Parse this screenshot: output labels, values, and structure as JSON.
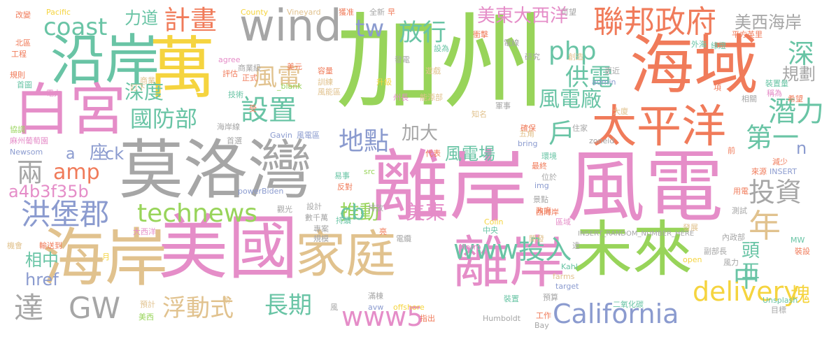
{
  "palette": {
    "green": "#98d45a",
    "pink": "#e58dc8",
    "gray": "#a6a6a6",
    "tan": "#e1c28e",
    "orange": "#f07b5a",
    "teal": "#69c4a5",
    "blue": "#8b9bcf",
    "yellow": "#f5d43f"
  },
  "words": [
    {
      "text": "加州",
      "color": "green"
    },
    {
      "text": "離岸",
      "color": "pink"
    },
    {
      "text": "風電",
      "color": "pink"
    },
    {
      "text": "美國",
      "color": "pink"
    },
    {
      "text": "莫洛灣",
      "color": "gray"
    },
    {
      "text": "海域",
      "color": "orange"
    },
    {
      "text": "萬",
      "color": "yellow"
    },
    {
      "text": "沿岸",
      "color": "teal"
    },
    {
      "text": "白宮",
      "color": "pink"
    },
    {
      "text": "海岸",
      "color": "tan"
    },
    {
      "text": "家庭",
      "color": "tan"
    },
    {
      "text": "未來",
      "color": "green"
    },
    {
      "text": "離岸",
      "color": "pink"
    },
    {
      "text": "太平洋",
      "color": "orange"
    },
    {
      "text": "wind",
      "color": "gray"
    },
    {
      "text": "聯邦政府",
      "color": "orange"
    },
    {
      "text": "計畫",
      "color": "orange"
    },
    {
      "text": "coast",
      "color": "teal"
    },
    {
      "text": "technews",
      "color": "green"
    },
    {
      "text": "洪堡郡",
      "color": "blue"
    },
    {
      "text": "amp",
      "color": "orange"
    },
    {
      "text": "設置",
      "color": "teal"
    },
    {
      "text": "國防部",
      "color": "teal"
    },
    {
      "text": "地點",
      "color": "blue"
    },
    {
      "text": "www投入",
      "color": "teal"
    },
    {
      "text": "www5",
      "color": "pink"
    },
    {
      "text": "delivery",
      "color": "yellow"
    },
    {
      "text": "California",
      "color": "blue"
    },
    {
      "text": "GW",
      "color": "gray"
    },
    {
      "text": "達",
      "color": "gray"
    },
    {
      "text": "浮動式",
      "color": "tan"
    },
    {
      "text": "長期",
      "color": "teal"
    },
    {
      "text": "php",
      "color": "teal"
    },
    {
      "text": "tw",
      "color": "blue"
    },
    {
      "text": "放行",
      "color": "teal"
    },
    {
      "text": "美東大西洋",
      "color": "pink"
    },
    {
      "text": "美西海岸",
      "color": "gray"
    },
    {
      "text": "力道",
      "color": "teal"
    },
    {
      "text": "風電",
      "color": "tan"
    },
    {
      "text": "供電",
      "color": "teal"
    },
    {
      "text": "風電廠",
      "color": "teal"
    },
    {
      "text": "深度",
      "color": "teal"
    },
    {
      "text": "規劃",
      "color": "gray"
    },
    {
      "text": "深",
      "color": "teal"
    },
    {
      "text": "潛力",
      "color": "teal"
    },
    {
      "text": "第一",
      "color": "teal"
    },
    {
      "text": "投資",
      "color": "gray"
    },
    {
      "text": "年",
      "color": "tan"
    },
    {
      "text": "戶",
      "color": "teal"
    },
    {
      "text": "頭",
      "color": "teal"
    },
    {
      "text": "正",
      "color": "teal"
    },
    {
      "text": "中",
      "color": "teal"
    },
    {
      "text": "塊",
      "color": "yellow"
    },
    {
      "text": "加大",
      "color": "gray"
    },
    {
      "text": "風電場",
      "color": "teal"
    },
    {
      "text": "推動",
      "color": "green"
    },
    {
      "text": "美東",
      "color": "pink"
    },
    {
      "text": "cb",
      "color": "teal"
    },
    {
      "text": "a4b3f35b",
      "color": "pink"
    },
    {
      "text": "兩",
      "color": "gray"
    },
    {
      "text": "座",
      "color": "blue"
    },
    {
      "text": "a",
      "color": "blue"
    },
    {
      "text": "ck",
      "color": "blue"
    },
    {
      "text": "相中",
      "color": "teal"
    },
    {
      "text": "href",
      "color": "blue"
    },
    {
      "text": "n",
      "color": "blue"
    },
    {
      "text": "Pacific",
      "color": "yellow"
    },
    {
      "text": "County",
      "color": "yellow"
    },
    {
      "text": "Vineyard",
      "color": "tan"
    },
    {
      "text": "獲准",
      "color": "orange"
    },
    {
      "text": "全新",
      "color": "gray"
    },
    {
      "text": "早",
      "color": "orange"
    },
    {
      "text": "可望",
      "color": "gray"
    },
    {
      "text": "改變",
      "color": "orange"
    },
    {
      "text": "北區",
      "color": "orange"
    },
    {
      "text": "工程",
      "color": "orange"
    },
    {
      "text": "規則",
      "color": "orange"
    },
    {
      "text": "首圖",
      "color": "teal"
    },
    {
      "text": "商業",
      "color": "tan"
    },
    {
      "text": "訂下",
      "color": "tan"
    },
    {
      "text": "電力",
      "color": "pink"
    },
    {
      "text": "協調",
      "color": "green"
    },
    {
      "text": "麻州葡萄園",
      "color": "pink"
    },
    {
      "text": "Newsom",
      "color": "blue"
    },
    {
      "text": "機會",
      "color": "tan"
    },
    {
      "text": "輸送到",
      "color": "orange"
    },
    {
      "text": "agree",
      "color": "pink"
    },
    {
      "text": "商業級",
      "color": "gray"
    },
    {
      "text": "美元",
      "color": "orange"
    },
    {
      "text": "正式",
      "color": "orange"
    },
    {
      "text": "評估",
      "color": "orange"
    },
    {
      "text": "技術",
      "color": "teal"
    },
    {
      "text": "受",
      "color": "orange"
    },
    {
      "text": "_blank",
      "color": "green"
    },
    {
      "text": "風能區",
      "color": "tan"
    },
    {
      "text": "升級",
      "color": "yellow"
    },
    {
      "text": "州長",
      "color": "pink"
    },
    {
      "text": "能源部",
      "color": "tan"
    },
    {
      "text": "發電",
      "color": "gray"
    },
    {
      "text": "容量",
      "color": "orange"
    },
    {
      "text": "訓練",
      "color": "tan"
    },
    {
      "text": "遊戲",
      "color": "tan"
    },
    {
      "text": "設為",
      "color": "teal"
    },
    {
      "text": "衝擊",
      "color": "orange"
    },
    {
      "text": "電線",
      "color": "gray"
    },
    {
      "text": "研究",
      "color": "gray"
    },
    {
      "text": "創造",
      "color": "tan"
    },
    {
      "text": "平方英里",
      "color": "orange"
    },
    {
      "text": "外海",
      "color": "teal"
    },
    {
      "text": "綠燈",
      "color": "teal"
    },
    {
      "text": "更近",
      "color": "gray"
    },
    {
      "text": "admin",
      "color": "blue"
    },
    {
      "text": "裝置量",
      "color": "teal"
    },
    {
      "text": "項",
      "color": "orange"
    },
    {
      "text": "稱為",
      "color": "pink"
    },
    {
      "text": "希望",
      "color": "orange"
    },
    {
      "text": "相關",
      "color": "gray"
    },
    {
      "text": "軍事",
      "color": "gray"
    },
    {
      "text": "知名",
      "color": "tan"
    },
    {
      "text": "確保",
      "color": "orange"
    },
    {
      "text": "大廈",
      "color": "tan"
    },
    {
      "text": "住家",
      "color": "gray"
    },
    {
      "text": "五角",
      "color": "tan"
    },
    {
      "text": "bring",
      "color": "blue"
    },
    {
      "text": "zoneid",
      "color": "gray"
    },
    {
      "text": "前",
      "color": "orange"
    },
    {
      "text": "減少",
      "color": "orange"
    },
    {
      "text": "環境",
      "color": "teal"
    },
    {
      "text": "代表",
      "color": "orange"
    },
    {
      "text": "最終",
      "color": "orange"
    },
    {
      "text": "位於",
      "color": "gray"
    },
    {
      "text": "INSERT",
      "color": "blue"
    },
    {
      "text": "來源",
      "color": "orange"
    },
    {
      "text": "海岸線",
      "color": "gray"
    },
    {
      "text": "首選",
      "color": "gray"
    },
    {
      "text": "Gavin",
      "color": "blue"
    },
    {
      "text": "風電區",
      "color": "blue"
    },
    {
      "text": "易事",
      "color": "teal"
    },
    {
      "text": "反對",
      "color": "orange"
    },
    {
      "text": "src",
      "color": "green"
    },
    {
      "text": "img",
      "color": "blue"
    },
    {
      "text": "景點",
      "color": "gray"
    },
    {
      "text": "政府",
      "color": "orange"
    },
    {
      "text": "用電",
      "color": "orange"
    },
    {
      "text": "powerBiden",
      "color": "blue"
    },
    {
      "text": "觀光",
      "color": "gray"
    },
    {
      "text": "設計",
      "color": "gray"
    },
    {
      "text": "持續",
      "color": "teal"
    },
    {
      "text": "排放",
      "color": "gray"
    },
    {
      "text": "Colin",
      "color": "yellow"
    },
    {
      "text": "西海岸",
      "color": "orange"
    },
    {
      "text": "區域",
      "color": "pink"
    },
    {
      "text": "測試",
      "color": "gray"
    },
    {
      "text": "大西洋",
      "color": "pink"
    },
    {
      "text": "數千萬",
      "color": "gray"
    },
    {
      "text": "專案",
      "color": "gray"
    },
    {
      "text": "亮",
      "color": "orange"
    },
    {
      "text": "中央",
      "color": "teal"
    },
    {
      "text": "開發",
      "color": "tan"
    },
    {
      "text": "INSERT_RANDOM_NUMBER_HERE",
      "color": "gray"
    },
    {
      "text": "發展",
      "color": "tan"
    },
    {
      "text": "內政部",
      "color": "gray"
    },
    {
      "text": "規模",
      "color": "gray"
    },
    {
      "text": "電纜",
      "color": "gray"
    },
    {
      "text": "Morro",
      "color": "pink"
    },
    {
      "text": "MW",
      "color": "teal"
    },
    {
      "text": "裝設",
      "color": "orange"
    },
    {
      "text": "遠",
      "color": "gray"
    },
    {
      "text": "副部長",
      "color": "gray"
    },
    {
      "text": "月",
      "color": "yellow"
    },
    {
      "text": "open",
      "color": "yellow"
    },
    {
      "text": "Kahl",
      "color": "teal"
    },
    {
      "text": "farms",
      "color": "tan"
    },
    {
      "text": "風力",
      "color": "gray"
    },
    {
      "text": "target",
      "color": "blue"
    },
    {
      "text": "目標",
      "color": "gray"
    },
    {
      "text": "預計",
      "color": "tan"
    },
    {
      "text": "喲",
      "color": "tan"
    },
    {
      "text": "滿棟",
      "color": "gray"
    },
    {
      "text": "offshore",
      "color": "yellow"
    },
    {
      "text": "avw",
      "color": "blue"
    },
    {
      "text": "風",
      "color": "gray"
    },
    {
      "text": "美西",
      "color": "green"
    },
    {
      "text": "裝置",
      "color": "teal"
    },
    {
      "text": "預算",
      "color": "gray"
    },
    {
      "text": "二氧化碳",
      "color": "teal"
    },
    {
      "text": "Unsplash",
      "color": "teal"
    },
    {
      "text": "指出",
      "color": "orange"
    },
    {
      "text": "Humboldt",
      "color": "gray"
    },
    {
      "text": "工作",
      "color": "orange"
    },
    {
      "text": "Bay",
      "color": "gray"
    }
  ]
}
